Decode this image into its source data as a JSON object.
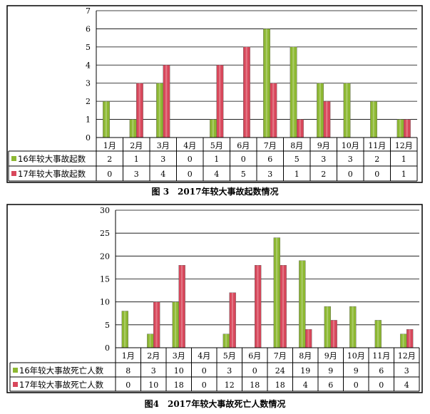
{
  "colors": {
    "series1": "#8db832",
    "series2": "#d8475b",
    "grid": "#000000"
  },
  "chart_data": [
    {
      "type": "bar",
      "title": "图 3　2017年较大事故起数情况",
      "categories": [
        "1月",
        "2月",
        "3月",
        "4月",
        "5月",
        "6月",
        "7月",
        "8月",
        "9月",
        "10月",
        "11月",
        "12月"
      ],
      "series": [
        {
          "name": "16年较大事故起数",
          "values": [
            2,
            1,
            3,
            0,
            1,
            0,
            6,
            5,
            3,
            3,
            2,
            1
          ]
        },
        {
          "name": "17年较大事故起数",
          "values": [
            0,
            3,
            4,
            0,
            4,
            5,
            3,
            1,
            2,
            0,
            0,
            1
          ]
        }
      ],
      "ylim": [
        0,
        7
      ],
      "yticks": [
        0,
        1,
        2,
        3,
        4,
        5,
        6,
        7
      ],
      "grid": true,
      "legend": "data-table"
    },
    {
      "type": "bar",
      "title": "图4　2017年较大事故死亡人数情况",
      "categories": [
        "1月",
        "2月",
        "3月",
        "4月",
        "5月",
        "6月",
        "7月",
        "8月",
        "9月",
        "10月",
        "11月",
        "12月"
      ],
      "series": [
        {
          "name": "16年较大事故死亡人数",
          "values": [
            8,
            3,
            10,
            0,
            3,
            0,
            24,
            19,
            9,
            9,
            6,
            3
          ]
        },
        {
          "name": "17年较大事故死亡人数",
          "values": [
            0,
            10,
            18,
            0,
            12,
            18,
            18,
            4,
            6,
            0,
            0,
            4
          ]
        }
      ],
      "ylim": [
        0,
        30
      ],
      "yticks": [
        0,
        5,
        10,
        15,
        20,
        25,
        30
      ],
      "grid": true,
      "legend": "data-table"
    }
  ]
}
